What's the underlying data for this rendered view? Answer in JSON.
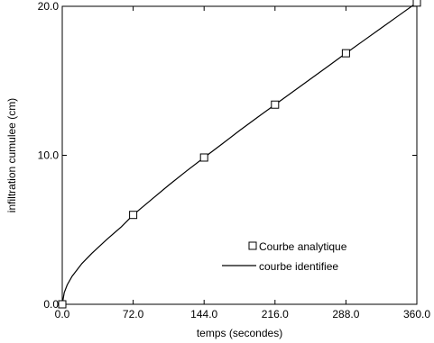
{
  "chart_data": {
    "type": "line",
    "title": "",
    "xlabel": "temps (secondes)",
    "ylabel": "infiltration cumulee (cm)",
    "xlim": [
      0,
      360
    ],
    "ylim": [
      0,
      20
    ],
    "x_ticks": [
      0,
      72,
      144,
      216,
      288,
      360
    ],
    "x_tick_labels": [
      "0.0",
      "72.0",
      "144.0",
      "216.0",
      "288.0",
      "360.0"
    ],
    "y_ticks": [
      0,
      10,
      20
    ],
    "y_tick_labels": [
      "0.0",
      "10.0",
      "20.0"
    ],
    "grid": false,
    "legend_position": "lower-right",
    "series": [
      {
        "name": "Courbe analytique",
        "style": "markers",
        "marker": "open-square",
        "color": "#000000",
        "x": [
          0,
          72,
          144,
          216,
          288,
          360
        ],
        "y": [
          0,
          6.0,
          9.85,
          13.4,
          16.85,
          20.25
        ]
      },
      {
        "name": "courbe identifiee",
        "style": "line",
        "color": "#000000",
        "x": [
          0,
          2,
          5,
          10,
          20,
          30,
          45,
          60,
          72,
          90,
          108,
          126,
          144,
          162,
          180,
          198,
          216,
          234,
          252,
          270,
          288,
          306,
          324,
          342,
          360
        ],
        "y": [
          0,
          0.78,
          1.3,
          1.88,
          2.74,
          3.42,
          4.34,
          5.2,
          6.0,
          7.0,
          7.99,
          8.94,
          9.85,
          10.75,
          11.66,
          12.54,
          13.4,
          14.26,
          15.12,
          15.98,
          16.85,
          17.7,
          18.55,
          19.4,
          20.25
        ]
      }
    ]
  }
}
